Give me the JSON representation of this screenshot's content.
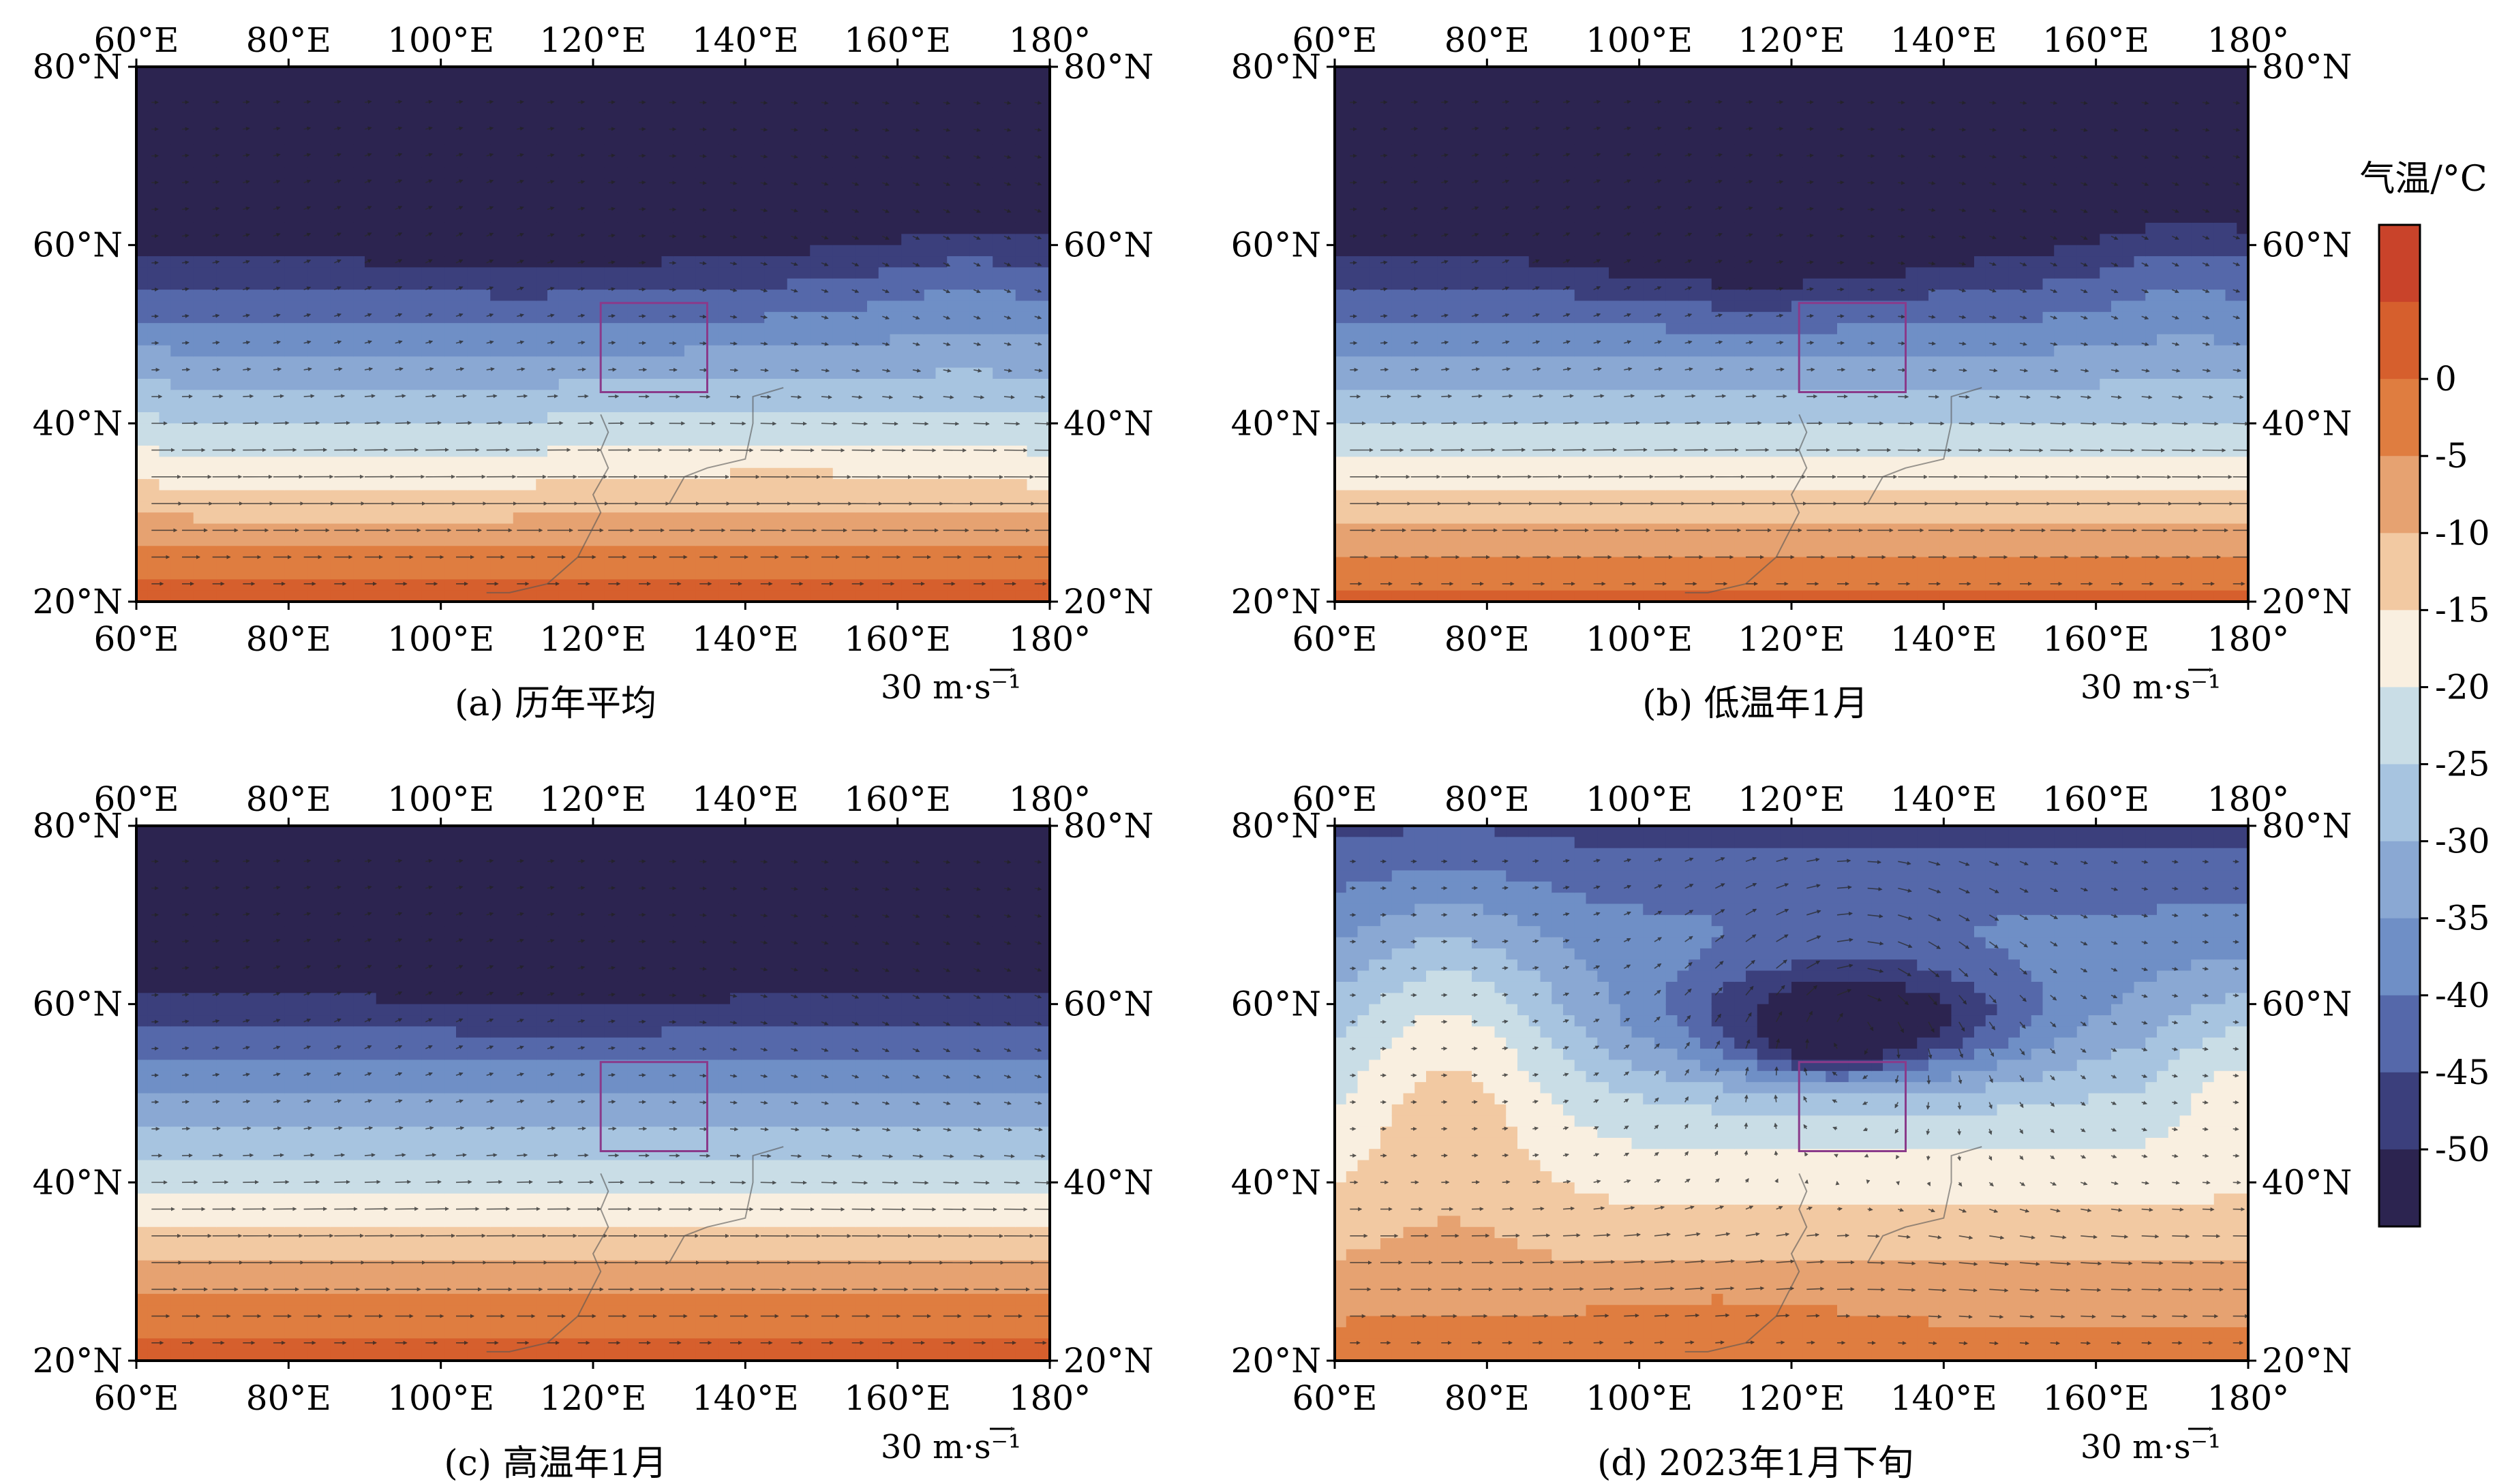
{
  "panels": [
    {
      "id": "a",
      "caption": "(a) 历年平均",
      "wind_ref_label": "30 m·s⁻¹",
      "pattern": "mean"
    },
    {
      "id": "b",
      "caption": "(b) 低温年1月",
      "wind_ref_label": "30 m·s⁻¹",
      "pattern": "cold"
    },
    {
      "id": "c",
      "caption": "(c) 高温年1月",
      "wind_ref_label": "30 m·s⁻¹",
      "pattern": "warm"
    },
    {
      "id": "d",
      "caption": "(d) 2023年1月下旬",
      "wind_ref_label": "30 m·s⁻¹",
      "pattern": "event"
    }
  ],
  "axes": {
    "lon_range": [
      60,
      180
    ],
    "lat_range": [
      20,
      80
    ],
    "lon_ticks": [
      "60°E",
      "80°E",
      "100°E",
      "120°E",
      "140°E",
      "160°E",
      "180°"
    ],
    "lat_ticks": [
      "20°N",
      "40°N",
      "60°N",
      "80°N"
    ]
  },
  "study_box": {
    "lon": [
      121,
      135
    ],
    "lat": [
      43.5,
      53.5
    ]
  },
  "colorbar": {
    "title": "气温/°C",
    "tick_labels": [
      "0",
      "-5",
      "-10",
      "-15",
      "-20",
      "-25",
      "-30",
      "-35",
      "-40",
      "-45",
      "-50"
    ],
    "levels": [
      5,
      0,
      -5,
      -10,
      -15,
      -20,
      -25,
      -30,
      -35,
      -40,
      -45,
      -50
    ],
    "colors": [
      "#c9432a",
      "#d65f2d",
      "#df7d40",
      "#e6a271",
      "#f2c9a2",
      "#f9efe0",
      "#c9dde6",
      "#a7c4e0",
      "#8aa8d3",
      "#6f8fc6",
      "#5568aa",
      "#3b3f7c",
      "#2c2450"
    ]
  }
}
